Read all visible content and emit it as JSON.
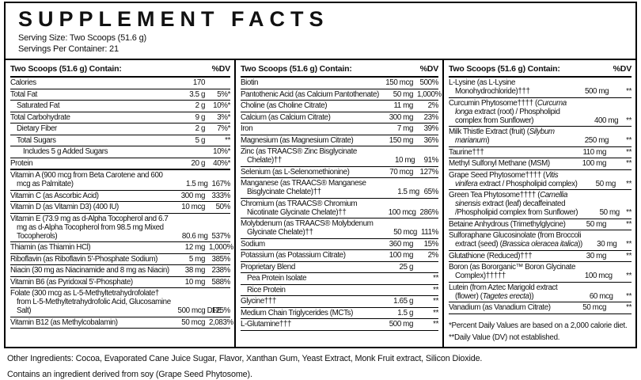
{
  "colors": {
    "background": "#ffffff",
    "text": "#111111",
    "border": "#000000"
  },
  "header": {
    "title": "SUPPLEMENT FACTS",
    "serving_size": "Serving Size: Two Scoops (51.6 g)",
    "servings_per_container": "Servings Per Container: 21"
  },
  "column_header": {
    "label": "Two Scoops (51.6 g) Contain:",
    "dv": "%DV"
  },
  "columns": [
    {
      "rows": [
        {
          "name": "Calories",
          "amount": "170",
          "dv": "",
          "indent": 0
        },
        {
          "name": "Total Fat",
          "amount": "3.5 g",
          "dv": "5%*",
          "indent": 0
        },
        {
          "name": "Saturated Fat",
          "amount": "2 g",
          "dv": "10%*",
          "indent": 1
        },
        {
          "name": "Total Carbohydrate",
          "amount": "9 g",
          "dv": "3%*",
          "indent": 0
        },
        {
          "name": "Dietary Fiber",
          "amount": "2 g",
          "dv": "7%*",
          "indent": 1
        },
        {
          "name": "Total Sugars",
          "amount": "5 g",
          "dv": "**",
          "indent": 1
        },
        {
          "name": "Includes 5 g Added Sugars",
          "amount": "",
          "dv": "10%*",
          "indent": 2
        },
        {
          "name": "Protein",
          "amount": "20 g",
          "dv": "40%*",
          "indent": 0,
          "thick": true
        },
        {
          "name": "Vitamin A (900 mcg from Beta Carotene and 600 mcg as Palmitate)",
          "amount": "1.5 mg",
          "dv": "167%"
        },
        {
          "name": "Vitamin C (as Ascorbic Acid)",
          "amount": "300 mg",
          "dv": "333%"
        },
        {
          "name": "Vitamin D (as Vitamin D3) (400 IU)",
          "amount": "10 mcg",
          "dv": "50%"
        },
        {
          "name": "Vitamin E (73.9 mg as d-Alpha Tocopherol and 6.7 mg as d-Alpha Tocopherol from 98.5 mg Mixed Tocopherols)",
          "amount": "80.6 mg",
          "dv": "537%"
        },
        {
          "name": "Thiamin (as Thiamin HCl)",
          "amount": "12 mg",
          "dv": "1,000%"
        },
        {
          "name": "Riboflavin (as Riboflavin 5'-Phosphate Sodium)",
          "amount": "5 mg",
          "dv": "385%"
        },
        {
          "name": "Niacin (30 mg as Niacinamide and 8 mg as Niacin)",
          "amount": "38 mg",
          "dv": "238%"
        },
        {
          "name": "Vitamin B6 (as Pyridoxal 5'-Phosphate)",
          "amount": "10 mg",
          "dv": "588%"
        },
        {
          "name": "Folate (300 mcg as L-5-Methyltetrahydrofolate† from L-5-Methyltetrahydrofolic Acid, Glucosamine Salt)",
          "amount": "500 mcg DFE",
          "dv": "125%"
        },
        {
          "name": "Vitamin B12 (as Methylcobalamin)",
          "amount": "50 mcg",
          "dv": "2,083%"
        }
      ]
    },
    {
      "rows": [
        {
          "name": "Biotin",
          "amount": "150 mcg",
          "dv": "500%"
        },
        {
          "name": "Pantothenic Acid (as Calcium Pantothenate)",
          "amount": "50 mg",
          "dv": "1,000%"
        },
        {
          "name": "Choline (as Choline Citrate)",
          "amount": "11 mg",
          "dv": "2%"
        },
        {
          "name": "Calcium (as Calcium Citrate)",
          "amount": "300 mg",
          "dv": "23%"
        },
        {
          "name": "Iron",
          "amount": "7 mg",
          "dv": "39%"
        },
        {
          "name": "Magnesium (as Magnesium Citrate)",
          "amount": "150 mg",
          "dv": "36%"
        },
        {
          "name": "Zinc (as TRAACS® Zinc Bisglycinate Chelate)††",
          "amount": "10 mg",
          "dv": "91%"
        },
        {
          "name": "Selenium (as L-Selenomethionine)",
          "amount": "70 mcg",
          "dv": "127%"
        },
        {
          "name": "Manganese (as TRAACS® Manganese Bisglycinate Chelate)††",
          "amount": "1.5 mg",
          "dv": "65%"
        },
        {
          "name": "Chromium (as TRAACS® Chromium Nicotinate Glycinate Chelate)††",
          "amount": "100 mcg",
          "dv": "286%"
        },
        {
          "name": "Molybdenum (as TRAACS® Molybdenum Glycinate Chelate)††",
          "amount": "50 mcg",
          "dv": "111%"
        },
        {
          "name": "Sodium",
          "amount": "360 mg",
          "dv": "15%"
        },
        {
          "name": "Potassium (as Potassium Citrate)",
          "amount": "100 mg",
          "dv": "2%"
        },
        {
          "name": "Proprietary Blend",
          "amount": "25 g",
          "dv": ""
        },
        {
          "name": "Pea Protein Isolate",
          "amount": "",
          "dv": "**",
          "indent": 1
        },
        {
          "name": "Rice Protein",
          "amount": "",
          "dv": "**",
          "indent": 1
        },
        {
          "name": "Glycine†††",
          "amount": "1.65 g",
          "dv": "**"
        },
        {
          "name": "Medium Chain Triglycerides (MCTs)",
          "amount": "1.5 g",
          "dv": "**"
        },
        {
          "name": "L-Glutamine†††",
          "amount": "500 mg",
          "dv": "**"
        }
      ]
    },
    {
      "rows": [
        {
          "name": "L-Lysine (as L-Lysine Monohydrochloride)†††",
          "amount": "500 mg",
          "dv": "**"
        },
        {
          "name": "Curcumin Phytosome†††† (Curcuma longa extract (root) / Phospholipid complex from Sunflower)",
          "amount": "400 mg",
          "dv": "**",
          "italics": [
            "Curcuma longa"
          ]
        },
        {
          "name": "Milk Thistle Extract (fruit) (Silybum marianum)",
          "amount": "250 mg",
          "dv": "**",
          "italics": [
            "Silybum marianum"
          ]
        },
        {
          "name": "Taurine†††",
          "amount": "110 mg",
          "dv": "**"
        },
        {
          "name": "Methyl Sulfonyl Methane (MSM)",
          "amount": "100 mg",
          "dv": "**"
        },
        {
          "name": "Grape Seed Phytosome†††† (Vitis vinifera extract / Phospholipid complex)",
          "amount": "50 mg",
          "dv": "**",
          "italics": [
            "Vitis vinifera"
          ]
        },
        {
          "name": "Green Tea Phytosome†††† (Camellia sinensis extract (leaf) decaffeinated /Phospholipid complex from Sunflower)",
          "amount": "50 mg",
          "dv": "**",
          "italics": [
            "Camellia sinensis"
          ]
        },
        {
          "name": "Betaine Anhydrous (Trimethylglycine)",
          "amount": "50 mg",
          "dv": "**"
        },
        {
          "name": "Sulforaphane Glucosinolate (from Broccoli extract (seed) (Brassica oleracea italica))",
          "amount": "30 mg",
          "dv": "**",
          "italics": [
            "Brassica oleracea italica"
          ]
        },
        {
          "name": "Glutathione (Reduced)†††",
          "amount": "30 mg",
          "dv": "**"
        },
        {
          "name": "Boron (as Bororganic™ Boron Glycinate Complex)†††††",
          "amount": "100 mcg",
          "dv": "**"
        },
        {
          "name": "Lutein (from Aztec Marigold extract (flower) (Tagetes erecta))",
          "amount": "60 mcg",
          "dv": "**",
          "italics": [
            "Tagetes erecta"
          ]
        },
        {
          "name": "Vanadium (as Vanadium Citrate)",
          "amount": "50 mcg",
          "dv": "**"
        }
      ]
    }
  ],
  "footnotes": [
    "*Percent Daily Values are based on a 2,000 calorie diet.",
    "**Daily Value (DV) not established."
  ],
  "other_ingredients": "Other Ingredients: Cocoa, Evaporated Cane Juice Sugar, Flavor, Xanthan Gum, Yeast Extract, Monk Fruit extract, Silicon Dioxide.",
  "allergen": "Contains an ingredient derived from soy (Grape Seed Phytosome)."
}
